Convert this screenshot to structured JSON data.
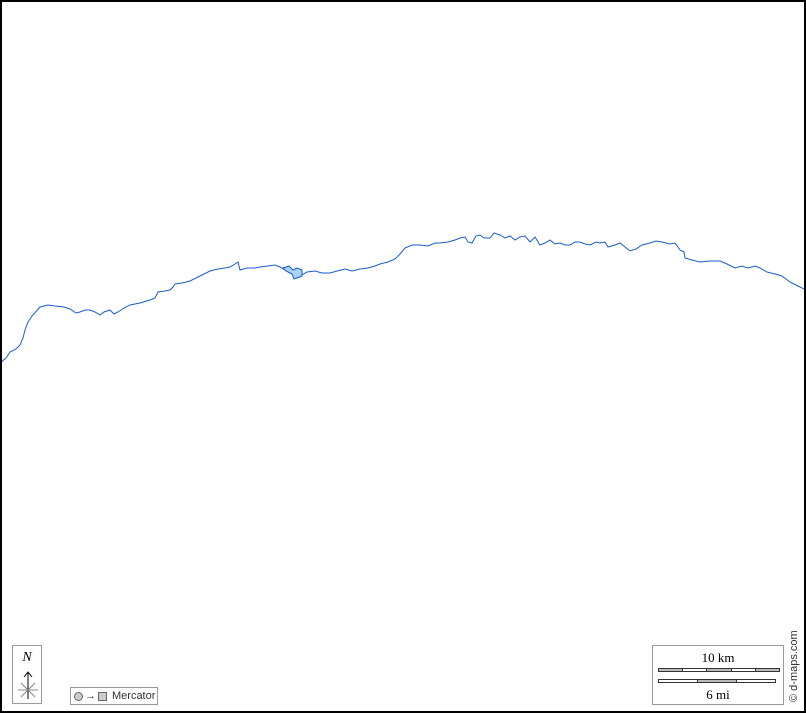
{
  "colors": {
    "river": "#1a5ccc",
    "lake": "#a8d2f4",
    "border": "#000000"
  },
  "compass": {
    "label": "N",
    "icon": "north-arrow-icon"
  },
  "projection": {
    "label": "Mercator",
    "icon": "circle-to-square-icon",
    "arrow": "→"
  },
  "scale": {
    "km_label": "10 km",
    "mi_label": "6 mi"
  },
  "credit": "© d-maps.com"
}
